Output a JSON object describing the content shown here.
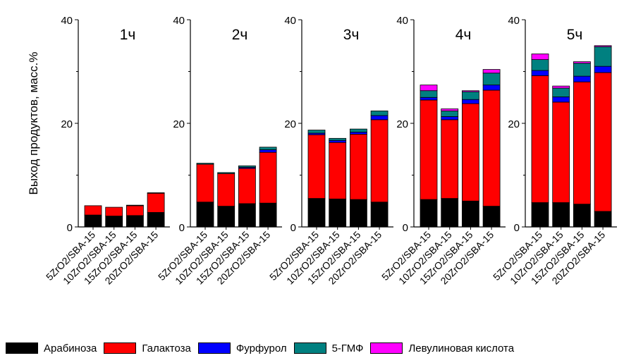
{
  "chart_data": {
    "type": "bar",
    "stacked": true,
    "ylabel": "Выход продуктов, масс.%",
    "ylim": [
      0,
      40
    ],
    "yticks": [
      0,
      20,
      40
    ],
    "categories": [
      "5ZrO2/SBA-15",
      "10ZrO2/SBA-15",
      "15ZrO2/SBA-15",
      "20ZrO2/SBA-15"
    ],
    "series_order": [
      "Арабиноза",
      "Галактоза",
      "Фурфурол",
      "5-ГМФ",
      "Левулиновая кислота"
    ],
    "colors": {
      "Арабиноза": "#000000",
      "Галактоза": "#ff0000",
      "Фурфурол": "#0000ff",
      "5-ГМФ": "#008080",
      "Левулиновая кислота": "#ff00ff"
    },
    "panels": [
      {
        "title": "1ч",
        "stacks": [
          [
            2.3,
            1.8,
            0.0,
            0.0,
            0.0
          ],
          [
            2.1,
            1.7,
            0.0,
            0.0,
            0.0
          ],
          [
            2.2,
            1.9,
            0.1,
            0.0,
            0.0
          ],
          [
            2.8,
            3.7,
            0.1,
            0.0,
            0.0
          ]
        ]
      },
      {
        "title": "2ч",
        "stacks": [
          [
            4.8,
            7.3,
            0.0,
            0.2,
            0.0
          ],
          [
            4.0,
            6.3,
            0.0,
            0.2,
            0.0
          ],
          [
            4.5,
            6.8,
            0.2,
            0.3,
            0.0
          ],
          [
            4.6,
            9.8,
            0.5,
            0.5,
            0.0
          ]
        ]
      },
      {
        "title": "3ч",
        "stacks": [
          [
            5.5,
            12.3,
            0.3,
            0.6,
            0.0
          ],
          [
            5.4,
            10.9,
            0.4,
            0.4,
            0.0
          ],
          [
            5.3,
            12.6,
            0.4,
            0.6,
            0.0
          ],
          [
            4.8,
            15.9,
            0.8,
            0.9,
            0.0
          ]
        ]
      },
      {
        "title": "4ч",
        "stacks": [
          [
            5.3,
            19.2,
            0.5,
            1.3,
            1.1
          ],
          [
            5.5,
            15.2,
            0.6,
            1.1,
            0.4
          ],
          [
            5.0,
            18.8,
            0.8,
            1.5,
            0.2
          ],
          [
            4.0,
            22.4,
            1.0,
            2.3,
            0.7
          ]
        ]
      },
      {
        "title": "5ч",
        "stacks": [
          [
            4.7,
            24.5,
            1.0,
            2.1,
            1.1
          ],
          [
            4.7,
            19.4,
            1.0,
            1.7,
            0.4
          ],
          [
            4.4,
            23.6,
            1.1,
            2.5,
            0.3
          ],
          [
            3.0,
            26.8,
            1.2,
            3.8,
            0.2
          ]
        ]
      }
    ]
  }
}
